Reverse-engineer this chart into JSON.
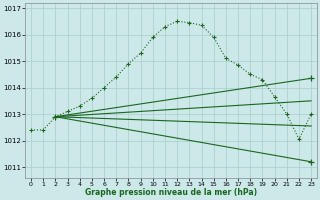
{
  "background_color": "#cce8e8",
  "grid_color": "#aacccc",
  "line_color_main": "#1a6620",
  "xlabel": "Graphe pression niveau de la mer (hPa)",
  "ylabel_values": [
    1011,
    1012,
    1013,
    1014,
    1015,
    1016,
    1017
  ],
  "xlim": [
    -0.5,
    23.5
  ],
  "ylim": [
    1010.6,
    1017.2
  ],
  "x_ticks": [
    0,
    1,
    2,
    3,
    4,
    5,
    6,
    7,
    8,
    9,
    10,
    11,
    12,
    13,
    14,
    15,
    16,
    17,
    18,
    19,
    20,
    21,
    22,
    23
  ],
  "curve_x": [
    0,
    1,
    2,
    3,
    4,
    5,
    6,
    7,
    8,
    9,
    10,
    11,
    12,
    13,
    14,
    15,
    16,
    17,
    18,
    19,
    20,
    21,
    22,
    23
  ],
  "curve_y": [
    1012.4,
    1012.4,
    1012.9,
    1013.1,
    1013.3,
    1013.6,
    1014.0,
    1014.4,
    1014.9,
    1015.3,
    1015.9,
    1016.3,
    1016.5,
    1016.45,
    1016.35,
    1015.9,
    1015.1,
    1014.85,
    1014.5,
    1014.3,
    1013.65,
    1013.0,
    1012.05,
    1013.0
  ],
  "fan_origin_x": 2,
  "fan_origin_y": 1012.9,
  "fan_lines": [
    {
      "x2": 23,
      "y2": 1011.2,
      "marker": true
    },
    {
      "x2": 23,
      "y2": 1012.55,
      "marker": false
    },
    {
      "x2": 23,
      "y2": 1013.5,
      "marker": false
    },
    {
      "x2": 23,
      "y2": 1014.35,
      "marker": true
    }
  ]
}
